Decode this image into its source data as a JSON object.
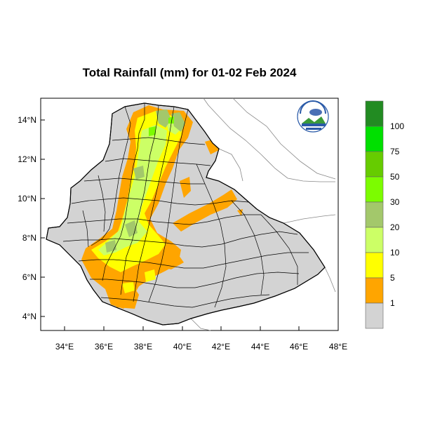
{
  "title": "Total Rainfall (mm) for 01-02 Feb 2024",
  "axes": {
    "x_ticks": [
      "34°E",
      "36°E",
      "38°E",
      "40°E",
      "42°E",
      "44°E",
      "46°E",
      "48°E"
    ],
    "y_ticks": [
      "14°N",
      "12°N",
      "10°N",
      "8°N",
      "6°N",
      "4°N"
    ]
  },
  "legend": {
    "labels": [
      "100",
      "75",
      "50",
      "30",
      "20",
      "10",
      "5",
      "1"
    ],
    "colors": [
      "#228b22",
      "#00e000",
      "#66cc00",
      "#7cfc00",
      "#a3c86b",
      "#ccff66",
      "#ffff00",
      "#ffa500",
      "#d3d3d3"
    ]
  },
  "colors": {
    "land": "#d3d3d3",
    "orange": "#ffa500",
    "yellow": "#ffff00",
    "light_green": "#ccff66",
    "mid_green": "#a3c86b",
    "lime": "#7cfc00"
  },
  "logo": "ethiopian-meteorology-institute-logo"
}
